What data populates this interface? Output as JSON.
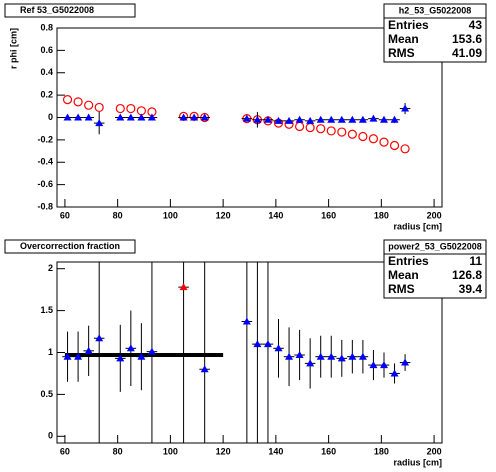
{
  "chart_data": [
    {
      "type": "scatter",
      "title": "Ref 53_G5022008",
      "x_label": "radius [cm]",
      "y_label": "r phi [cm]",
      "xlim": [
        57,
        203
      ],
      "xticks": [
        60,
        80,
        100,
        120,
        140,
        160,
        180,
        200
      ],
      "ylim": [
        -0.8,
        0.8
      ],
      "yticks": [
        -0.8,
        -0.6,
        -0.4,
        -0.2,
        0,
        0.2,
        0.4,
        0.6,
        0.8
      ],
      "stats": {
        "name": "h2_53_G5022008",
        "rows": [
          {
            "label": "Entries",
            "value": 43
          },
          {
            "label": "Mean",
            "value": 153.6
          },
          {
            "label": "RMS",
            "value": 41.09
          }
        ]
      },
      "series": [
        {
          "color": "#ff0000",
          "marker": "open-circle",
          "x": [
            61,
            65,
            69,
            73,
            81,
            85,
            89,
            93,
            105,
            109,
            113,
            129,
            133,
            137,
            141,
            145,
            149,
            153,
            157,
            161,
            165,
            169,
            173,
            177,
            181,
            185,
            189
          ],
          "values": [
            0.16,
            0.14,
            0.11,
            0.09,
            0.08,
            0.08,
            0.06,
            0.05,
            0.01,
            0.01,
            0.0,
            -0.01,
            -0.02,
            -0.03,
            -0.05,
            -0.06,
            -0.08,
            -0.09,
            -0.1,
            -0.12,
            -0.13,
            -0.15,
            -0.17,
            -0.19,
            -0.22,
            -0.25,
            -0.28
          ]
        },
        {
          "color": "#0000ff",
          "marker": "triangle",
          "xerr": 2,
          "x": [
            61,
            65,
            69,
            73,
            81,
            85,
            89,
            93,
            105,
            109,
            113,
            129,
            133,
            137,
            141,
            145,
            149,
            153,
            157,
            161,
            165,
            169,
            173,
            177,
            181,
            185,
            189
          ],
          "values": [
            0,
            0,
            0,
            -0.05,
            0,
            0,
            0,
            0,
            0,
            0,
            0,
            -0.01,
            -0.02,
            -0.02,
            -0.03,
            -0.03,
            -0.02,
            -0.03,
            -0.02,
            -0.02,
            -0.02,
            -0.02,
            -0.02,
            -0.01,
            -0.02,
            -0.02,
            0.08
          ],
          "yerr": [
            0.01,
            0.01,
            0.01,
            0.1,
            0.01,
            0.01,
            0.01,
            0.01,
            0.02,
            0.01,
            0.01,
            0.02,
            0.07,
            0.02,
            0.01,
            0.01,
            0.01,
            0.01,
            0.01,
            0.01,
            0.01,
            0.01,
            0.01,
            0.02,
            0.02,
            0.03,
            0.05
          ]
        }
      ]
    },
    {
      "type": "scatter",
      "title": "Overcorrection fraction",
      "x_label": "radius [cm]",
      "xlim": [
        57,
        203
      ],
      "xticks": [
        60,
        80,
        100,
        120,
        140,
        160,
        180,
        200
      ],
      "ylim": [
        -0.08,
        2.08
      ],
      "yticks": [
        0,
        0.5,
        1,
        1.5,
        2
      ],
      "stats": {
        "name": "power2_53_G5022008",
        "rows": [
          {
            "label": "Entries",
            "value": 11
          },
          {
            "label": "Mean",
            "value": 126.8
          },
          {
            "label": "RMS",
            "value": 39.4
          }
        ]
      },
      "fit": {
        "x": [
          60,
          120
        ],
        "values": [
          0.97,
          0.97
        ]
      },
      "series": [
        {
          "color": "#0000ff",
          "marker": "triangle",
          "xerr": 2,
          "x": [
            61,
            65,
            69,
            73,
            81,
            85,
            89,
            93,
            113,
            129,
            133,
            137,
            141,
            145,
            149,
            153,
            157,
            161,
            165,
            169,
            173,
            177,
            181,
            185,
            189
          ],
          "values": [
            0.95,
            0.95,
            1.02,
            1.17,
            0.93,
            1.05,
            0.95,
            1.01,
            0.8,
            1.37,
            1.1,
            1.1,
            1.05,
            0.95,
            0.97,
            0.87,
            0.95,
            0.95,
            0.93,
            0.95,
            0.95,
            0.85,
            0.85,
            0.75,
            0.88
          ],
          "yerr": [
            0.3,
            0.3,
            0.3,
            1.3,
            0.4,
            0.45,
            0.4,
            1.2,
            1.3,
            1.5,
            1.2,
            1.2,
            0.35,
            0.35,
            0.3,
            0.3,
            0.25,
            0.25,
            0.22,
            0.2,
            0.2,
            0.18,
            0.15,
            0.12,
            0.1
          ]
        },
        {
          "color": "#ff0000",
          "marker": "triangle",
          "xerr": 2,
          "x": [
            105
          ],
          "values": [
            1.78
          ],
          "yerr": [
            2.0
          ]
        }
      ]
    }
  ]
}
